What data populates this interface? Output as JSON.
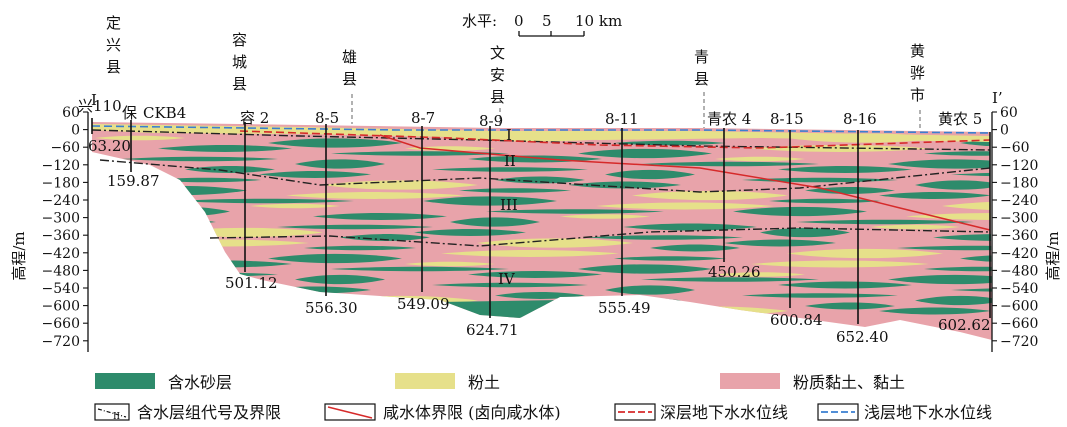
{
  "scale": {
    "label": "水平:",
    "ticks": [
      "0",
      "5",
      "10 km"
    ]
  },
  "section": {
    "left_mark": "I",
    "right_mark": "I’"
  },
  "axis": {
    "ylabel": "高程/m",
    "ticks": [
      "60",
      "0",
      "−60",
      "−120",
      "−180",
      "−240",
      "−300",
      "−360",
      "−420",
      "−480",
      "−540",
      "−600",
      "−660",
      "−720"
    ]
  },
  "places": {
    "dingxing": [
      "定",
      "兴",
      "县"
    ],
    "rongcheng": [
      "容",
      "城",
      "县"
    ],
    "xiong": [
      "雄",
      "县"
    ],
    "wenan": [
      "文",
      "安",
      "县"
    ],
    "qing": [
      "青",
      "县"
    ],
    "huanghua": [
      "黄",
      "骅",
      "市"
    ]
  },
  "wells": {
    "xing110": "兴110",
    "bao": "保",
    "ckb4": "CKB4",
    "rong2": "容 2",
    "w8_5": "8-5",
    "w8_7": "8-7",
    "w8_9": "8-9",
    "w8_11": "8-11",
    "qingnong4": "青农 4",
    "w8_15": "8-15",
    "w8_16": "8-16",
    "huangnong5": "黄农 5"
  },
  "depths": {
    "d63": "63.20",
    "d159": "159.87",
    "d501": "501.12",
    "d556": "556.30",
    "d549": "549.09",
    "d624": "624.71",
    "d555": "555.49",
    "d450": "450.26",
    "d600": "600.84",
    "d652": "652.40",
    "d602": "602.62"
  },
  "groups": {
    "g1": "I",
    "g2": "II",
    "g3": "III",
    "g4": "IV"
  },
  "legend": {
    "sand": "含水砂层",
    "silt": "粉土",
    "clay": "粉质黏土、黏土",
    "boundary": "含水层组代号及界限",
    "saline": "咸水体界限 (卤向咸水体)",
    "deep": "深层地下水水位线",
    "shallow": "浅层地下水水位线"
  },
  "colors": {
    "sand": "#2e8b6b",
    "silt": "#e6e08a",
    "clay": "#e8a3aa",
    "saline": "#d62a2a",
    "deep": "#d62a2a",
    "shallow": "#3a7fd0"
  }
}
